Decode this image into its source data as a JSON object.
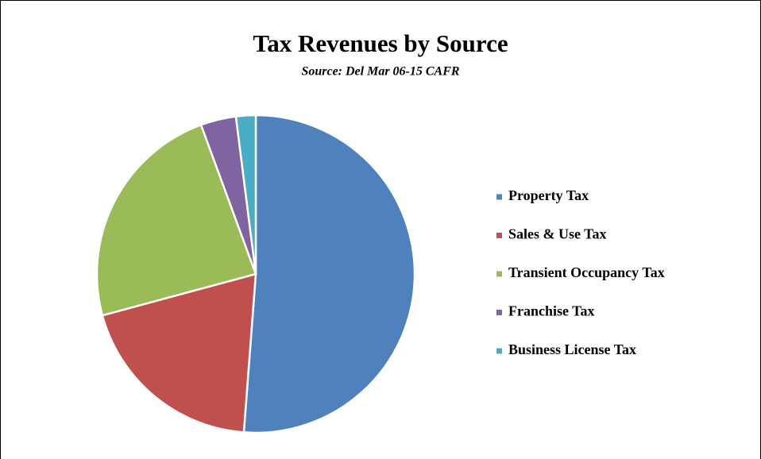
{
  "chart_data": {
    "type": "pie",
    "title": "Tax Revenues by Source",
    "subtitle": "Source: Del Mar 06-15 CAFR",
    "categories": [
      "Property Tax",
      "Sales & Use Tax",
      "Transient Occupancy Tax",
      "Franchise Tax",
      "Business License Tax"
    ],
    "values": [
      51.2,
      19.6,
      23.6,
      3.6,
      2.0
    ],
    "colors": [
      "#4f81bd",
      "#c0504d",
      "#9bbb59",
      "#8064a2",
      "#4bacc6"
    ],
    "legend": "right"
  }
}
